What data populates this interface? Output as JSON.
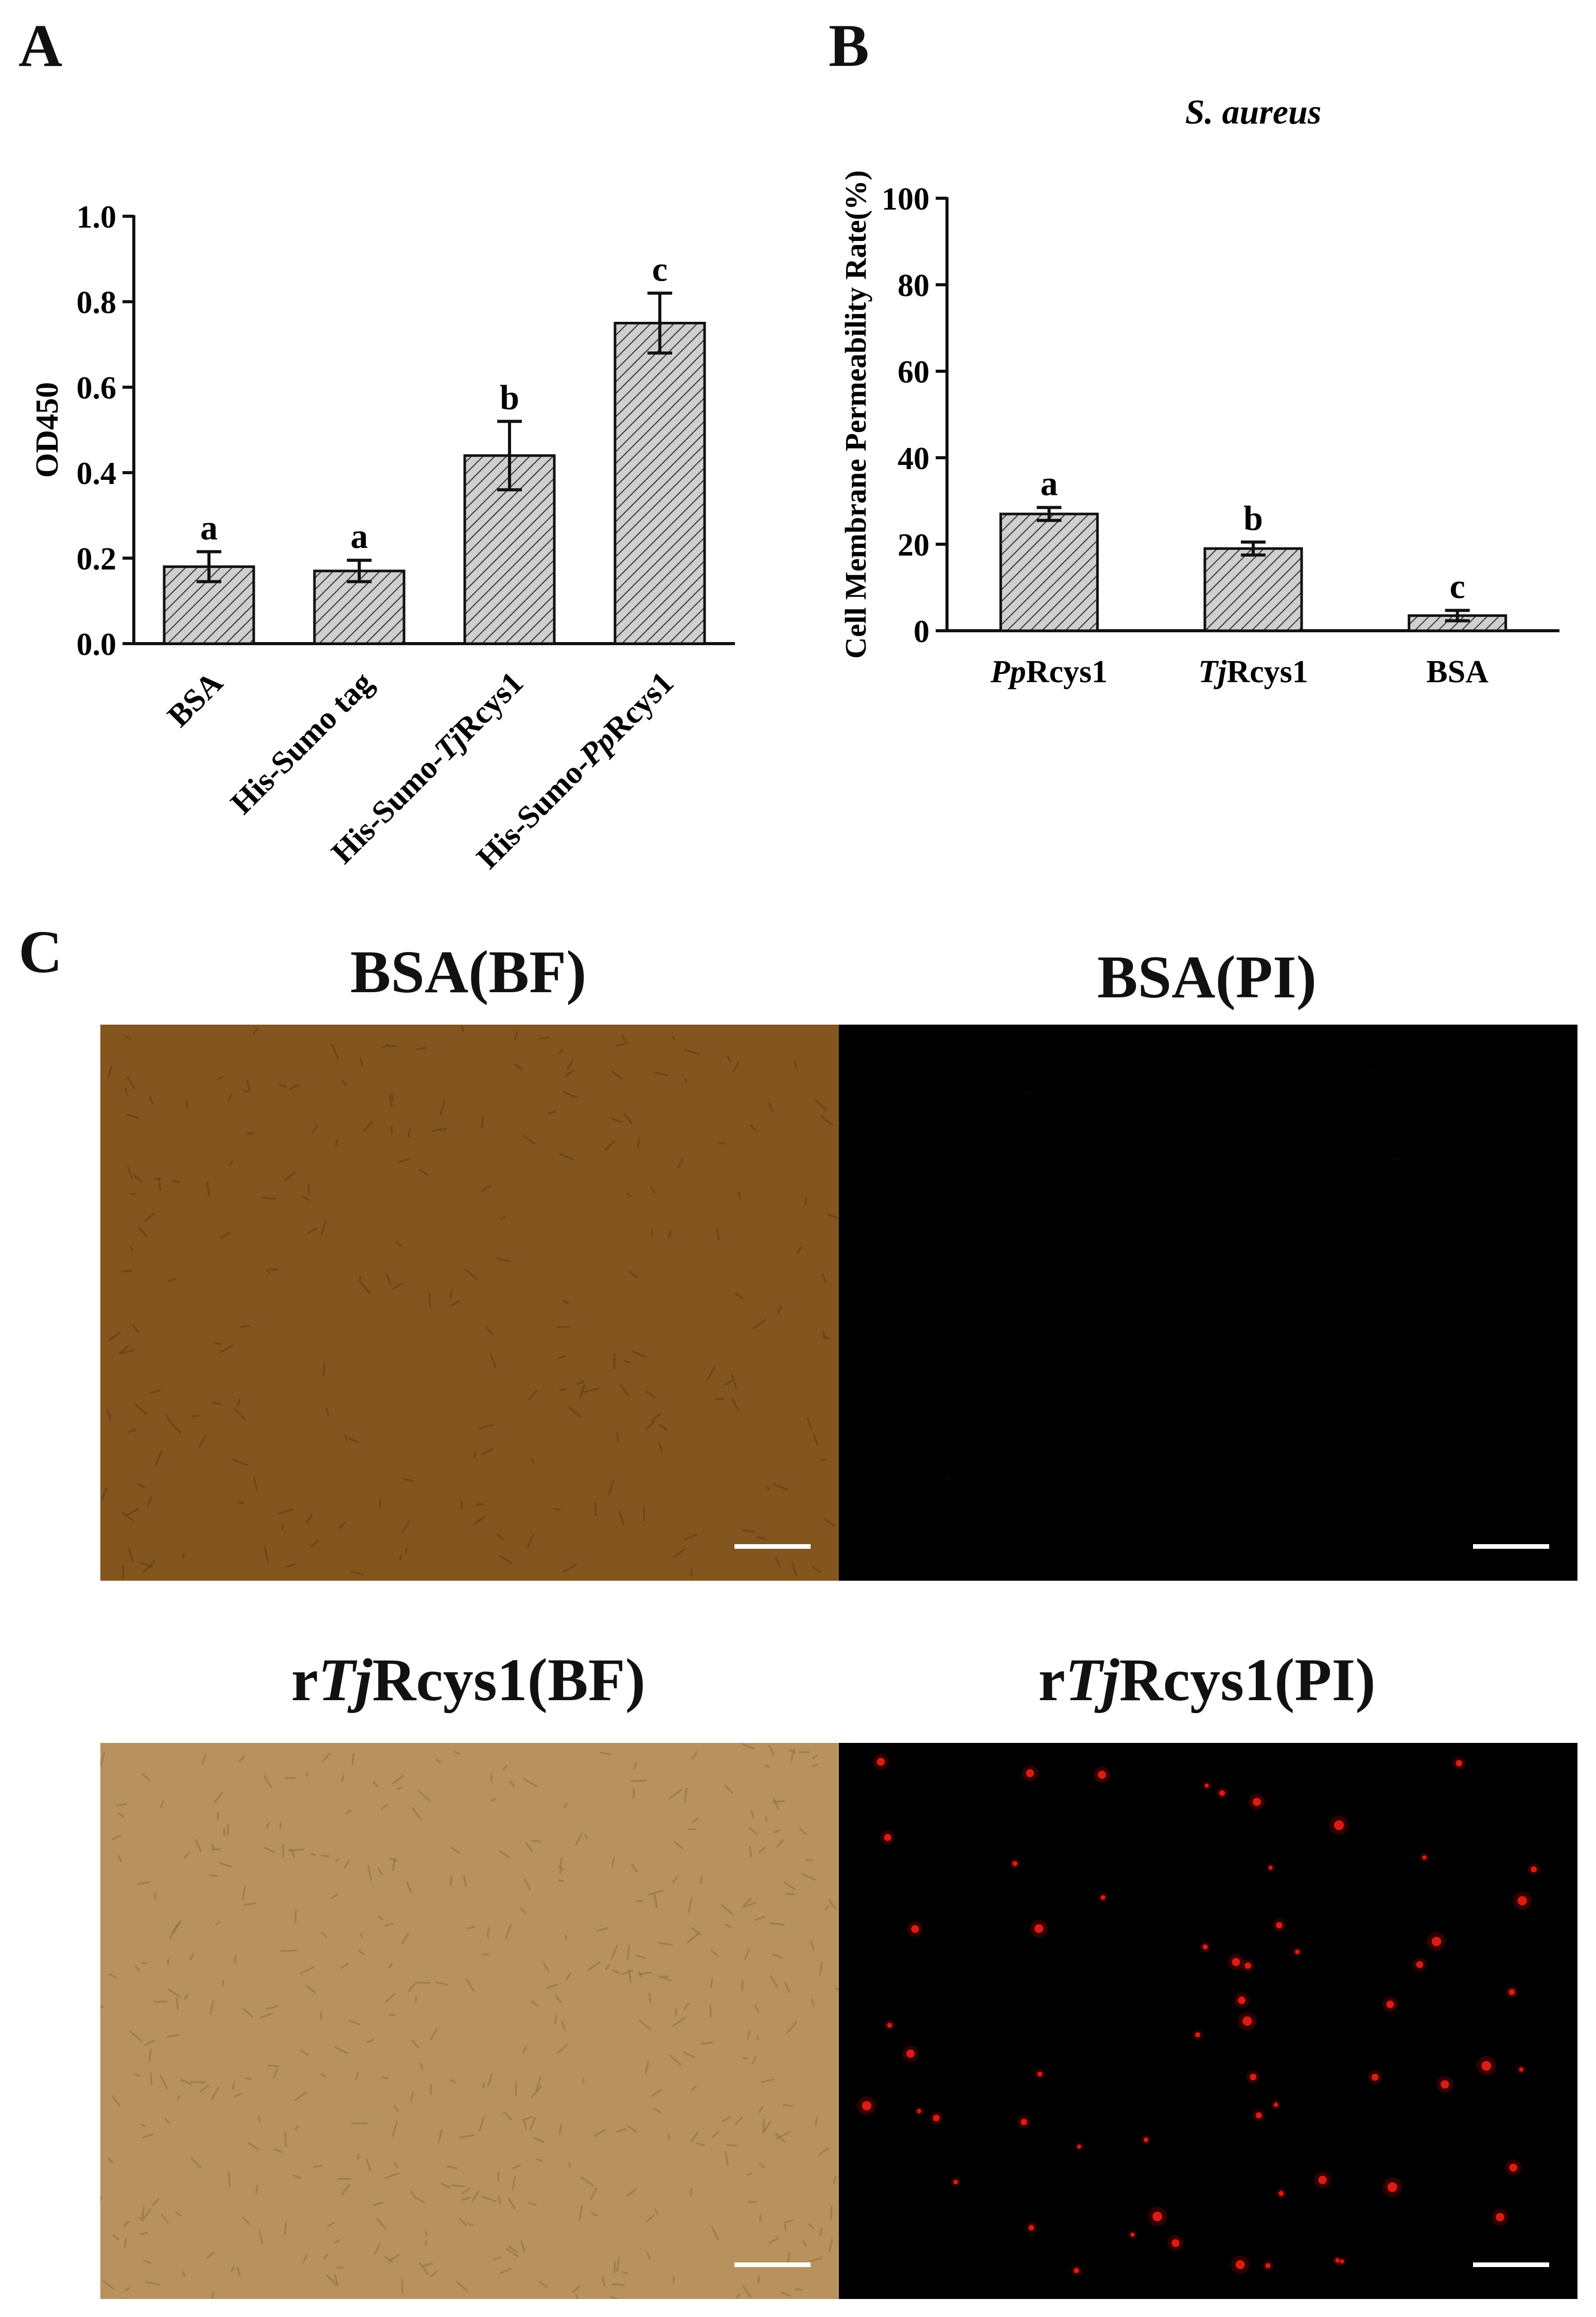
{
  "panels": {
    "a": "A",
    "b": "B",
    "c": "C"
  },
  "chart_data": [
    {
      "type": "bar",
      "panel": "A",
      "categories": [
        "BSA",
        "His-Sumo tag",
        "His-Sumo-TjRcys1",
        "His-Sumo-PpRcys1"
      ],
      "category_parts": [
        [
          {
            "t": "BSA",
            "i": false
          }
        ],
        [
          {
            "t": "His-Sumo tag",
            "i": false
          }
        ],
        [
          {
            "t": "His-Sumo-",
            "i": false
          },
          {
            "t": "Tj",
            "i": true
          },
          {
            "t": "Rcys1",
            "i": false
          }
        ],
        [
          {
            "t": "His-Sumo-",
            "i": false
          },
          {
            "t": "Pp",
            "i": true
          },
          {
            "t": "Rcys1",
            "i": false
          }
        ]
      ],
      "values": [
        0.18,
        0.17,
        0.44,
        0.75
      ],
      "errors": [
        0.035,
        0.025,
        0.08,
        0.07
      ],
      "significance": [
        "a",
        "a",
        "b",
        "c"
      ],
      "title": "",
      "xlabel": "",
      "ylabel": "OD450",
      "ylim": [
        0,
        1.0
      ],
      "yticks": [
        "0.0",
        "0.2",
        "0.4",
        "0.6",
        "0.8",
        "1.0"
      ],
      "bar_fill": "#cfcfcf",
      "hatch": true
    },
    {
      "type": "bar",
      "panel": "B",
      "categories": [
        "PpRcys1",
        "TjRcys1",
        "BSA"
      ],
      "category_parts": [
        [
          {
            "t": "Pp",
            "i": true
          },
          {
            "t": "Rcys1",
            "i": false
          }
        ],
        [
          {
            "t": "Tj",
            "i": true
          },
          {
            "t": "Rcys1",
            "i": false
          }
        ],
        [
          {
            "t": "BSA",
            "i": false
          }
        ]
      ],
      "values": [
        27,
        19,
        3.5
      ],
      "errors": [
        1.5,
        1.5,
        1.2
      ],
      "significance": [
        "a",
        "b",
        "c"
      ],
      "title": "S. aureus",
      "xlabel": "",
      "ylabel": "Cell Membrane Permeability Rate(%)",
      "ylim": [
        0,
        100
      ],
      "yticks": [
        "0",
        "20",
        "40",
        "60",
        "80",
        "100"
      ],
      "bar_fill": "#cfcfcf",
      "hatch": true
    }
  ],
  "micrographs": [
    {
      "id": "bsa-bf",
      "title_parts": [
        {
          "t": "BSA(BF)",
          "i": false
        }
      ],
      "kind": "brightfield",
      "color": "#83551f"
    },
    {
      "id": "bsa-pi",
      "title_parts": [
        {
          "t": "BSA(PI)",
          "i": false
        }
      ],
      "kind": "fluorescence",
      "color": "#000000"
    },
    {
      "id": "tj-bf",
      "title_parts": [
        {
          "t": "r",
          "i": false
        },
        {
          "t": "Tj",
          "i": true
        },
        {
          "t": "Rcys1(BF)",
          "i": false
        }
      ],
      "kind": "brightfield",
      "color": "#b7925e"
    },
    {
      "id": "tj-pi",
      "title_parts": [
        {
          "t": "r",
          "i": false
        },
        {
          "t": "Tj",
          "i": true
        },
        {
          "t": "Rcys1(PI)",
          "i": false
        }
      ],
      "kind": "fluorescence",
      "color": "#000000"
    }
  ]
}
